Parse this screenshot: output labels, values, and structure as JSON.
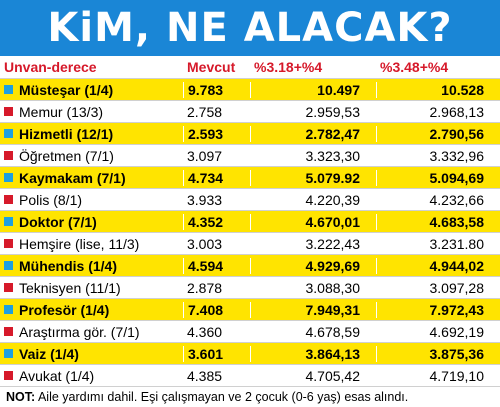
{
  "title": "KiM, NE ALACAK?",
  "colors": {
    "title_bg": "#1a86d6",
    "header_text": "#d6192a",
    "highlight": "#ffe400",
    "square_blue": "#1ea0e0",
    "square_red": "#d6192a"
  },
  "header": {
    "col0": "Unvan-derece",
    "col1": "Mevcut",
    "col2": "%3.18+%4",
    "col3": "%3.48+%4"
  },
  "rows": [
    {
      "name": "Müsteşar (1/4)",
      "mevcut": "9.783",
      "v1": "10.497",
      "v2": "10.528",
      "highlight": true,
      "icon": "blue-square-icon"
    },
    {
      "name": "Memur (13/3)",
      "mevcut": "2.758",
      "v1": "2.959,53",
      "v2": "2.968,13",
      "highlight": false,
      "icon": "red-square-icon"
    },
    {
      "name": "Hizmetli (12/1)",
      "mevcut": "2.593",
      "v1": "2.782,47",
      "v2": "2.790,56",
      "highlight": true,
      "icon": "blue-square-icon"
    },
    {
      "name": "Öğretmen (7/1)",
      "mevcut": "3.097",
      "v1": "3.323,30",
      "v2": "3.332,96",
      "highlight": false,
      "icon": "red-square-icon"
    },
    {
      "name": "Kaymakam (7/1)",
      "mevcut": "4.734",
      "v1": "5.079.92",
      "v2": "5.094,69",
      "highlight": true,
      "icon": "blue-square-icon"
    },
    {
      "name": "Polis (8/1)",
      "mevcut": "3.933",
      "v1": "4.220,39",
      "v2": "4.232,66",
      "highlight": false,
      "icon": "red-square-icon"
    },
    {
      "name": "Doktor (7/1)",
      "mevcut": "4.352",
      "v1": "4.670,01",
      "v2": "4.683,58",
      "highlight": true,
      "icon": "blue-square-icon"
    },
    {
      "name": "Hemşire (lise, 11/3)",
      "mevcut": "3.003",
      "v1": "3.222,43",
      "v2": "3.231.80",
      "highlight": false,
      "icon": "red-square-icon"
    },
    {
      "name": "Mühendis (1/4)",
      "mevcut": "4.594",
      "v1": "4.929,69",
      "v2": "4.944,02",
      "highlight": true,
      "icon": "blue-square-icon"
    },
    {
      "name": "Teknisyen (11/1)",
      "mevcut": "2.878",
      "v1": "3.088,30",
      "v2": "3.097,28",
      "highlight": false,
      "icon": "red-square-icon"
    },
    {
      "name": "Profesör (1/4)",
      "mevcut": "7.408",
      "v1": "7.949,31",
      "v2": "7.972,43",
      "highlight": true,
      "icon": "blue-square-icon"
    },
    {
      "name": "Araştırma gör. (7/1)",
      "mevcut": "4.360",
      "v1": "4.678,59",
      "v2": "4.692,19",
      "highlight": false,
      "icon": "red-square-icon"
    },
    {
      "name": "Vaiz (1/4)",
      "mevcut": "3.601",
      "v1": "3.864,13",
      "v2": "3.875,36",
      "highlight": true,
      "icon": "blue-square-icon"
    },
    {
      "name": "Avukat (1/4)",
      "mevcut": "4.385",
      "v1": "4.705,42",
      "v2": "4.719,10",
      "highlight": false,
      "icon": "red-square-icon"
    }
  ],
  "note": {
    "label": "NOT:",
    "text": " Aile yardımı dahil. Eşi çalışmayan ve 2 çocuk (0-6 yaş) esas alındı."
  }
}
